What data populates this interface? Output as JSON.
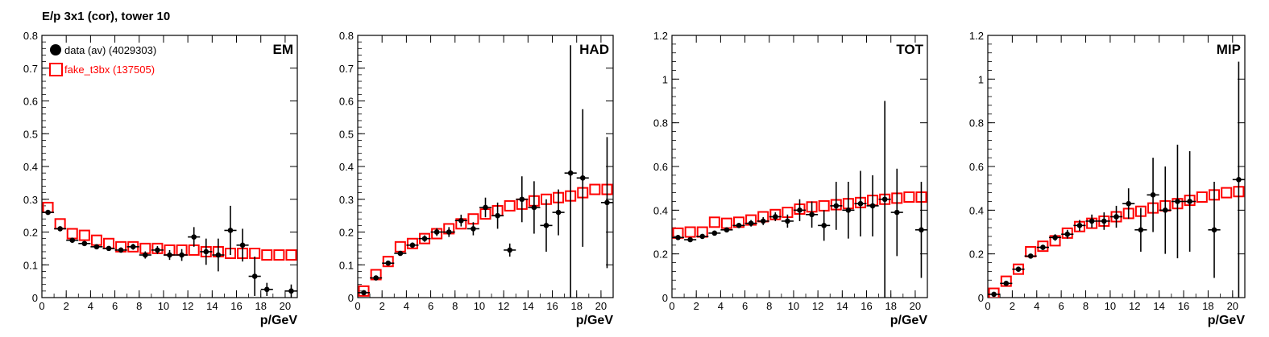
{
  "page_title": "E/p 3x1 (cor), tower 10",
  "legend": {
    "data": "data (av) (4029303)",
    "fake": "fake_t3bx (137505)"
  },
  "colors": {
    "data": "#000000",
    "fake": "#ff0000",
    "frame": "#000000"
  },
  "chart_data": [
    {
      "type": "scatter",
      "panel_label": "EM",
      "xlabel": "p/GeV",
      "ylabel": "",
      "xlim": [
        0,
        21
      ],
      "ylim": [
        0,
        0.8
      ],
      "yticks": [
        0,
        0.1,
        0.2,
        0.3,
        0.4,
        0.5,
        0.6,
        0.7,
        0.8
      ],
      "ytick_labels": [
        "0",
        "0.1",
        "0.2",
        "0.3",
        "0.4",
        "0.5",
        "0.6",
        "0.7",
        "0.8"
      ],
      "xticks": [
        0,
        2,
        4,
        6,
        8,
        10,
        12,
        14,
        16,
        18,
        20
      ],
      "show_legend": true,
      "series": [
        {
          "name": "data (av) (4029303)",
          "x": [
            0.5,
            1.5,
            2.5,
            3.5,
            4.5,
            5.5,
            6.5,
            7.5,
            8.5,
            9.5,
            10.5,
            11.5,
            12.5,
            13.5,
            14.5,
            15.5,
            16.5,
            17.5,
            18.5,
            20.5
          ],
          "y": [
            0.26,
            0.21,
            0.175,
            0.165,
            0.155,
            0.15,
            0.145,
            0.155,
            0.13,
            0.145,
            0.13,
            0.13,
            0.185,
            0.14,
            0.13,
            0.205,
            0.16,
            0.065,
            0.025,
            0.02
          ],
          "yerr": [
            0.006,
            0.005,
            0.005,
            0.005,
            0.006,
            0.007,
            0.008,
            0.009,
            0.011,
            0.012,
            0.015,
            0.018,
            0.03,
            0.04,
            0.05,
            0.075,
            0.05,
            0.06,
            0.02,
            0.02
          ]
        },
        {
          "name": "fake_t3bx (137505)",
          "x": [
            0.5,
            1.5,
            2.5,
            3.5,
            4.5,
            5.5,
            6.5,
            7.5,
            8.5,
            9.5,
            10.5,
            11.5,
            12.5,
            13.5,
            14.5,
            15.5,
            16.5,
            17.5,
            18.5,
            19.5,
            20.5
          ],
          "y": [
            0.275,
            0.225,
            0.195,
            0.19,
            0.175,
            0.165,
            0.155,
            0.155,
            0.15,
            0.15,
            0.145,
            0.145,
            0.145,
            0.14,
            0.14,
            0.135,
            0.135,
            0.135,
            0.13,
            0.13,
            0.13
          ]
        }
      ]
    },
    {
      "type": "scatter",
      "panel_label": "HAD",
      "xlabel": "p/GeV",
      "ylabel": "",
      "xlim": [
        0,
        21
      ],
      "ylim": [
        0,
        0.8
      ],
      "yticks": [
        0,
        0.1,
        0.2,
        0.3,
        0.4,
        0.5,
        0.6,
        0.7,
        0.8
      ],
      "ytick_labels": [
        "0",
        "0.1",
        "0.2",
        "0.3",
        "0.4",
        "0.5",
        "0.6",
        "0.7",
        "0.8"
      ],
      "xticks": [
        0,
        2,
        4,
        6,
        8,
        10,
        12,
        14,
        16,
        18,
        20
      ],
      "show_legend": false,
      "series": [
        {
          "name": "data (av) (4029303)",
          "x": [
            0.5,
            1.5,
            2.5,
            3.5,
            4.5,
            5.5,
            6.5,
            7.5,
            8.5,
            9.5,
            10.5,
            11.5,
            12.5,
            13.5,
            14.5,
            15.5,
            16.5,
            17.5,
            18.5,
            20.5
          ],
          "y": [
            0.015,
            0.06,
            0.105,
            0.135,
            0.16,
            0.18,
            0.2,
            0.2,
            0.235,
            0.21,
            0.275,
            0.25,
            0.145,
            0.3,
            0.275,
            0.22,
            0.26,
            0.38,
            0.365,
            0.29
          ],
          "yerr": [
            0.005,
            0.006,
            0.006,
            0.007,
            0.008,
            0.01,
            0.012,
            0.015,
            0.018,
            0.02,
            0.03,
            0.04,
            0.02,
            0.07,
            0.08,
            0.08,
            0.07,
            0.39,
            0.21,
            0.2
          ]
        },
        {
          "name": "fake_t3bx (137505)",
          "x": [
            0.5,
            1.5,
            2.5,
            3.5,
            4.5,
            5.5,
            6.5,
            7.5,
            8.5,
            9.5,
            10.5,
            11.5,
            12.5,
            13.5,
            14.5,
            15.5,
            16.5,
            17.5,
            18.5,
            19.5,
            20.5
          ],
          "y": [
            0.02,
            0.07,
            0.11,
            0.155,
            0.165,
            0.18,
            0.195,
            0.21,
            0.225,
            0.24,
            0.255,
            0.265,
            0.28,
            0.285,
            0.295,
            0.3,
            0.305,
            0.31,
            0.32,
            0.33,
            0.33
          ]
        }
      ]
    },
    {
      "type": "scatter",
      "panel_label": "TOT",
      "xlabel": "p/GeV",
      "ylabel": "",
      "xlim": [
        0,
        21
      ],
      "ylim": [
        0,
        1.2
      ],
      "yticks": [
        0,
        0.2,
        0.4,
        0.6,
        0.8,
        1,
        1.2
      ],
      "ytick_labels": [
        "0",
        "0.2",
        "0.4",
        "0.6",
        "0.8",
        "1",
        "1.2"
      ],
      "xticks": [
        0,
        2,
        4,
        6,
        8,
        10,
        12,
        14,
        16,
        18,
        20
      ],
      "show_legend": false,
      "series": [
        {
          "name": "data (av) (4029303)",
          "x": [
            0.5,
            1.5,
            2.5,
            3.5,
            4.5,
            5.5,
            6.5,
            7.5,
            8.5,
            9.5,
            10.5,
            11.5,
            12.5,
            13.5,
            14.5,
            15.5,
            16.5,
            17.5,
            18.5,
            20.5
          ],
          "y": [
            0.275,
            0.265,
            0.28,
            0.295,
            0.31,
            0.33,
            0.34,
            0.35,
            0.37,
            0.35,
            0.4,
            0.38,
            0.33,
            0.42,
            0.4,
            0.43,
            0.42,
            0.45,
            0.39,
            0.31
          ],
          "yerr": [
            0.006,
            0.006,
            0.007,
            0.008,
            0.01,
            0.012,
            0.015,
            0.018,
            0.02,
            0.03,
            0.05,
            0.06,
            0.07,
            0.11,
            0.13,
            0.15,
            0.14,
            0.45,
            0.2,
            0.22
          ]
        },
        {
          "name": "fake_t3bx (137505)",
          "x": [
            0.5,
            1.5,
            2.5,
            3.5,
            4.5,
            5.5,
            6.5,
            7.5,
            8.5,
            9.5,
            10.5,
            11.5,
            12.5,
            13.5,
            14.5,
            15.5,
            16.5,
            17.5,
            18.5,
            19.5,
            20.5
          ],
          "y": [
            0.295,
            0.3,
            0.3,
            0.345,
            0.34,
            0.345,
            0.355,
            0.37,
            0.38,
            0.39,
            0.405,
            0.415,
            0.42,
            0.425,
            0.43,
            0.435,
            0.445,
            0.45,
            0.455,
            0.46,
            0.46
          ]
        }
      ]
    },
    {
      "type": "scatter",
      "panel_label": "MIP",
      "xlabel": "p/GeV",
      "ylabel": "",
      "xlim": [
        0,
        21
      ],
      "ylim": [
        0,
        1.2
      ],
      "yticks": [
        0,
        0.2,
        0.4,
        0.6,
        0.8,
        1,
        1.2
      ],
      "ytick_labels": [
        "0",
        "0.2",
        "0.4",
        "0.6",
        "0.8",
        "1",
        "1.2"
      ],
      "xticks": [
        0,
        2,
        4,
        6,
        8,
        10,
        12,
        14,
        16,
        18,
        20
      ],
      "show_legend": false,
      "series": [
        {
          "name": "data (av) (4029303)",
          "x": [
            0.5,
            1.5,
            2.5,
            3.5,
            4.5,
            5.5,
            6.5,
            7.5,
            8.5,
            9.5,
            10.5,
            11.5,
            12.5,
            13.5,
            14.5,
            15.5,
            16.5,
            18.5,
            20.5
          ],
          "y": [
            0.015,
            0.065,
            0.13,
            0.19,
            0.23,
            0.275,
            0.29,
            0.33,
            0.35,
            0.35,
            0.37,
            0.43,
            0.31,
            0.47,
            0.4,
            0.44,
            0.44,
            0.31,
            0.54
          ],
          "yerr": [
            0.005,
            0.006,
            0.008,
            0.01,
            0.012,
            0.015,
            0.02,
            0.025,
            0.03,
            0.04,
            0.05,
            0.07,
            0.1,
            0.17,
            0.2,
            0.26,
            0.23,
            0.22,
            0.54
          ]
        },
        {
          "name": "fake_t3bx (137505)",
          "x": [
            0.5,
            1.5,
            2.5,
            3.5,
            4.5,
            5.5,
            6.5,
            7.5,
            8.5,
            9.5,
            10.5,
            11.5,
            12.5,
            13.5,
            14.5,
            15.5,
            16.5,
            17.5,
            18.5,
            19.5,
            20.5
          ],
          "y": [
            0.02,
            0.075,
            0.13,
            0.21,
            0.235,
            0.26,
            0.295,
            0.325,
            0.34,
            0.35,
            0.37,
            0.385,
            0.395,
            0.41,
            0.42,
            0.43,
            0.445,
            0.46,
            0.47,
            0.48,
            0.485
          ]
        }
      ]
    }
  ]
}
